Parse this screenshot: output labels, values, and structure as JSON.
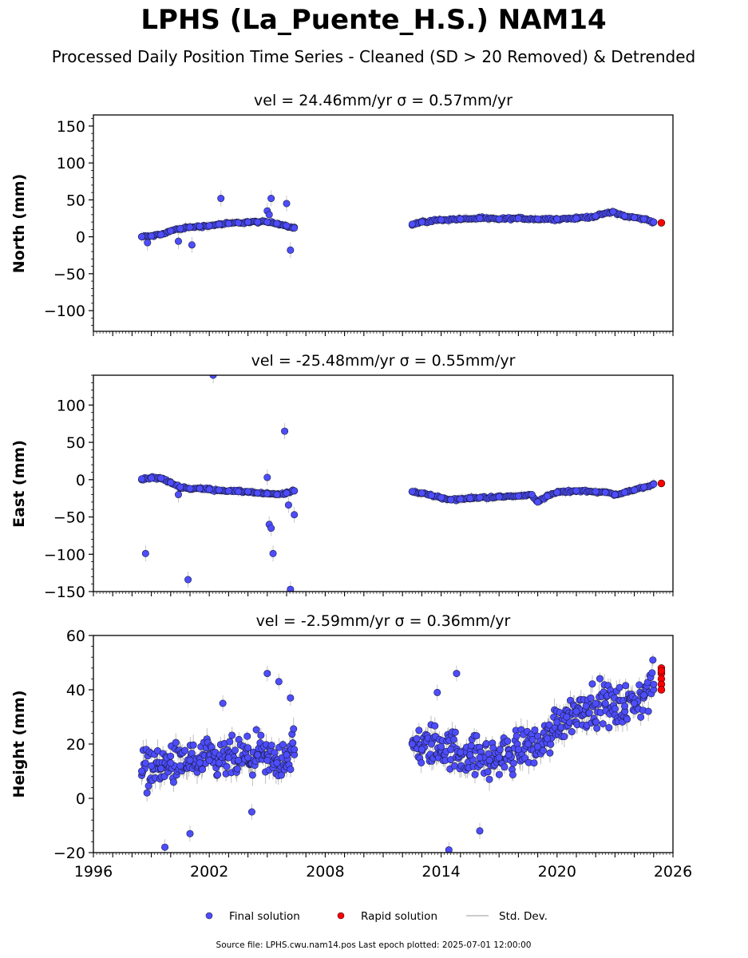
{
  "title": "LPHS (La_Puente_H.S.) NAM14",
  "subtitle": "Processed Daily Position Time Series - Cleaned (SD > 20 Removed) & Detrended",
  "source_note": "Source file: LPHS.cwu.nam14.pos  Last epoch plotted: 2025-07-01 12:00:00",
  "legend": {
    "final": "Final solution",
    "rapid": "Rapid solution",
    "std": "Std. Dev."
  },
  "colors": {
    "final": "#4d4dff",
    "rapid": "#ff0000",
    "std": "#bbbbbb"
  },
  "chart_data": [
    {
      "type": "scatter",
      "component": "north",
      "title": "vel = 24.46mm/yr   σ = 0.57mm/yr",
      "xlabel": "",
      "ylabel": "North (mm)",
      "xlim": [
        1996,
        2026
      ],
      "ylim": [
        -128,
        165
      ],
      "yticks": [
        "150",
        "100",
        "50",
        "0",
        "−50",
        "−100"
      ],
      "yticks_values": [
        150,
        100,
        50,
        0,
        -50,
        -100
      ],
      "xticks": [
        "1996",
        "2002",
        "2008",
        "2014",
        "2020",
        "2026"
      ],
      "show_xtick_labels": false,
      "series": [
        {
          "kind": "final",
          "x": [
            1998.5,
            1999.0,
            1999.5,
            2000.0,
            2000.5,
            2001.0,
            2001.5,
            2002.0,
            2002.5,
            2003.0,
            2003.5,
            2004.0,
            2004.5,
            2005.0,
            2005.5,
            2006.0,
            2006.4,
            2012.5,
            2013.0,
            2014.0,
            2015.0,
            2016.0,
            2017.0,
            2018.0,
            2019.0,
            2020.0,
            2021.0,
            2022.0,
            2022.9,
            2023.5,
            2024.0,
            2024.5,
            2025.0
          ],
          "y": [
            0,
            1,
            3,
            8,
            11,
            13,
            14,
            15,
            17,
            18,
            19,
            20,
            20,
            20,
            18,
            15,
            12,
            17,
            20,
            23,
            24,
            25,
            24,
            25,
            24,
            24,
            25,
            28,
            34,
            28,
            26,
            24,
            20
          ]
        },
        {
          "kind": "final_outliers",
          "x": [
            1998.8,
            2000.4,
            2001.1,
            2002.6,
            2005.0,
            2005.2,
            2005.1,
            2006.0,
            2006.2
          ],
          "y": [
            -8,
            -6,
            -11,
            52,
            35,
            52,
            30,
            45,
            -18
          ]
        },
        {
          "kind": "rapid",
          "x": [
            2025.4
          ],
          "y": [
            19
          ]
        }
      ]
    },
    {
      "type": "scatter",
      "component": "east",
      "title": "vel = -25.48mm/yr   σ = 0.55mm/yr",
      "xlabel": "",
      "ylabel": "East (mm)",
      "xlim": [
        1996,
        2026
      ],
      "ylim": [
        -150,
        140
      ],
      "yticks": [
        "100",
        "50",
        "0",
        "−50",
        "−100",
        "−150"
      ],
      "yticks_values": [
        100,
        50,
        0,
        -50,
        -100,
        -150
      ],
      "xticks": [
        "1996",
        "2002",
        "2008",
        "2014",
        "2020",
        "2026"
      ],
      "show_xtick_labels": false,
      "series": [
        {
          "kind": "final",
          "x": [
            1998.5,
            1999.0,
            1999.5,
            2000.0,
            2000.5,
            2001.0,
            2001.5,
            2002.0,
            2002.5,
            2003.0,
            2003.5,
            2004.0,
            2004.5,
            2005.0,
            2005.5,
            2006.0,
            2006.4,
            2012.5,
            2013.0,
            2013.5,
            2014.0,
            2014.5,
            2015.0,
            2015.5,
            2016.0,
            2017.0,
            2018.0,
            2018.7,
            2019.0,
            2019.5,
            2020.0,
            2021.0,
            2022.0,
            2022.5,
            2023.0,
            2023.5,
            2024.0,
            2024.5,
            2025.0
          ],
          "y": [
            1,
            2,
            2,
            -4,
            -10,
            -12,
            -12,
            -13,
            -14,
            -15,
            -16,
            -16,
            -18,
            -19,
            -20,
            -18,
            -15,
            -16,
            -18,
            -21,
            -24,
            -27,
            -26,
            -25,
            -24,
            -23,
            -22,
            -20,
            -30,
            -22,
            -17,
            -15,
            -16,
            -17,
            -20,
            -17,
            -14,
            -10,
            -6
          ]
        },
        {
          "kind": "final_outliers",
          "x": [
            1998.7,
            2000.4,
            2000.9,
            2002.2,
            2005.1,
            2005.2,
            2005.3,
            2005.9,
            2006.1,
            2006.4,
            2006.2,
            2005.0
          ],
          "y": [
            -99,
            -20,
            -134,
            140,
            -60,
            -65,
            -99,
            65,
            -34,
            -47,
            -147,
            3
          ]
        },
        {
          "kind": "rapid",
          "x": [
            2025.4
          ],
          "y": [
            -5
          ]
        }
      ]
    },
    {
      "type": "scatter",
      "component": "height",
      "title": "vel = -2.59mm/yr   σ = 0.36mm/yr",
      "xlabel": "",
      "ylabel": "Height (mm)",
      "xlim": [
        1996,
        2026
      ],
      "ylim": [
        -20,
        60
      ],
      "yticks": [
        "60",
        "40",
        "20",
        "0",
        "−20"
      ],
      "yticks_values": [
        60,
        40,
        20,
        0,
        -20
      ],
      "xticks": [
        "1996",
        "2002",
        "2008",
        "2014",
        "2020",
        "2026"
      ],
      "show_xtick_labels": true,
      "series": [
        {
          "kind": "final",
          "x": [
            1998.5,
            1999.0,
            1999.5,
            2000.0,
            2000.5,
            2001.0,
            2001.5,
            2002.0,
            2002.5,
            2003.0,
            2003.5,
            2004.0,
            2004.5,
            2005.0,
            2005.5,
            2006.0,
            2006.4,
            2012.5,
            2013.0,
            2013.5,
            2014.0,
            2014.5,
            2015.0,
            2015.5,
            2016.0,
            2016.5,
            2017.0,
            2017.5,
            2018.0,
            2018.5,
            2019.0,
            2019.5,
            2020.0,
            2020.5,
            2021.0,
            2021.5,
            2022.0,
            2022.5,
            2023.0,
            2023.5,
            2024.0,
            2024.5,
            2025.0
          ],
          "y": [
            10,
            12,
            11,
            13,
            12,
            14,
            13,
            14,
            13,
            15,
            14,
            15,
            16,
            14,
            13,
            16,
            18,
            20,
            18,
            20,
            19,
            18,
            17,
            16,
            15,
            14,
            15,
            16,
            18,
            20,
            19,
            22,
            28,
            30,
            32,
            34,
            35,
            35,
            33,
            34,
            35,
            38,
            42
          ]
        },
        {
          "kind": "final_outliers",
          "x": [
            1999.7,
            2001.0,
            2002.7,
            2005.0,
            2005.6,
            2006.2,
            2013.8,
            2014.4,
            2014.8,
            2016.0,
            2004.2
          ],
          "y": [
            -18,
            -13,
            35,
            46,
            43,
            37,
            39,
            -19,
            46,
            -12,
            -5
          ]
        },
        {
          "kind": "rapid",
          "x": [
            2025.4,
            2025.4,
            2025.4,
            2025.4,
            2025.4,
            2025.4
          ],
          "y": [
            48,
            46,
            44,
            42,
            40,
            47
          ]
        }
      ]
    }
  ]
}
